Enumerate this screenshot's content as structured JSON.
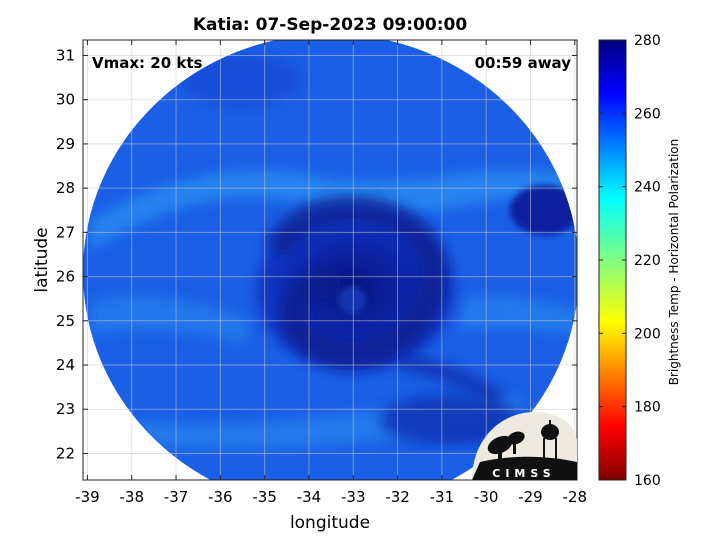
{
  "title": "Katia: 07-Sep-2023 09:00:00",
  "vmax_text": "Vmax: 20 kts",
  "time_away_text": "00:59 away",
  "xlabel": "longitude",
  "ylabel": "latitude",
  "x_ticks": [
    "-39",
    "-38",
    "-37",
    "-36",
    "-35",
    "-34",
    "-33",
    "-32",
    "-31",
    "-30",
    "-29",
    "-28"
  ],
  "y_ticks": [
    "31",
    "30",
    "29",
    "28",
    "27",
    "26",
    "25",
    "24",
    "23",
    "22"
  ],
  "xlim": [
    -39.1,
    -27.95
  ],
  "ylim": [
    21.4,
    31.35
  ],
  "colorbar": {
    "label": "Brightness Temp - Horizontal Polarization",
    "ticks": [
      "280",
      "260",
      "240",
      "220",
      "200",
      "180",
      "160"
    ],
    "range": [
      160,
      280
    ],
    "colormap": "jet"
  },
  "logo": {
    "text": "CIMSS"
  },
  "colors": {
    "swath_background": "#1a5fe6",
    "swath_cool_band": "#2a8ef0",
    "storm_core": "#0a1e9a",
    "grid": "#c8c8c8"
  },
  "chart_data": {
    "type": "heatmap",
    "title": "Katia: 07-Sep-2023 09:00:00",
    "xlabel": "longitude",
    "ylabel": "latitude",
    "xlim": [
      -39.1,
      -27.95
    ],
    "ylim": [
      21.4,
      31.35
    ],
    "grid": true,
    "storm_center": {
      "lon": -33.2,
      "lat": 25.6
    },
    "colorbar_range": [
      160,
      280
    ],
    "colorbar_label": "Brightness Temp - Horizontal Polarization"
  }
}
